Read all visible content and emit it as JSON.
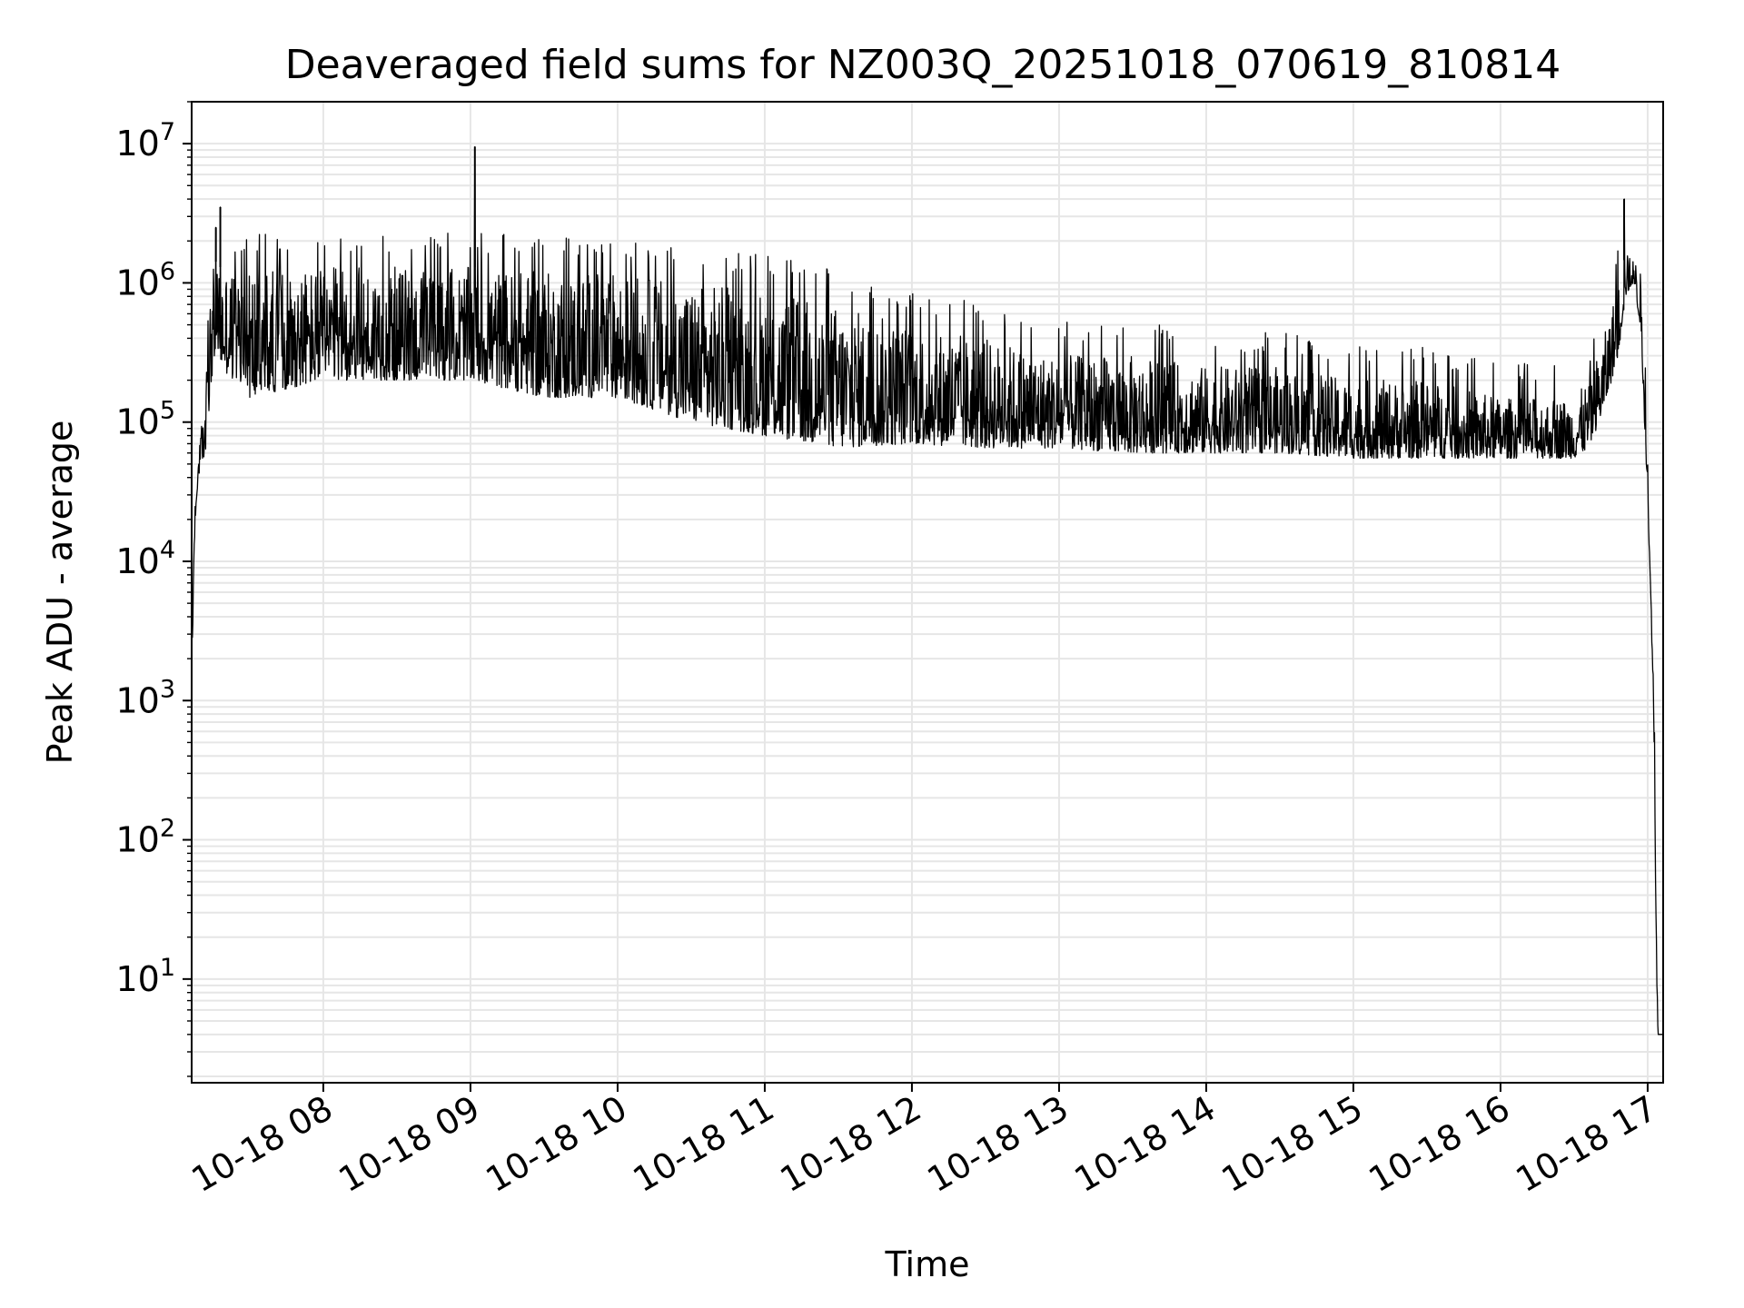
{
  "chart_data": {
    "type": "line",
    "title": "Deaveraged field sums for NZ003Q_20251018_070619_810814",
    "xlabel": "Time",
    "ylabel": "Peak ADU - average",
    "yscale": "log",
    "grid": true,
    "line_color": "#000000",
    "grid_color": "#e6e6e6",
    "xlim_hours": [
      7.1053,
      17.1053
    ],
    "ylim": [
      1.8,
      20000000
    ],
    "x_ticks": [
      {
        "hour": 8,
        "label": "10-18 08"
      },
      {
        "hour": 9,
        "label": "10-18 09"
      },
      {
        "hour": 10,
        "label": "10-18 10"
      },
      {
        "hour": 11,
        "label": "10-18 11"
      },
      {
        "hour": 12,
        "label": "10-18 12"
      },
      {
        "hour": 13,
        "label": "10-18 13"
      },
      {
        "hour": 14,
        "label": "10-18 14"
      },
      {
        "hour": 15,
        "label": "10-18 15"
      },
      {
        "hour": 16,
        "label": "10-18 16"
      },
      {
        "hour": 17,
        "label": "10-18 17"
      }
    ],
    "y_ticks": [
      {
        "value": 10,
        "base": "10",
        "exp": "1"
      },
      {
        "value": 100,
        "base": "10",
        "exp": "2"
      },
      {
        "value": 1000,
        "base": "10",
        "exp": "3"
      },
      {
        "value": 10000,
        "base": "10",
        "exp": "4"
      },
      {
        "value": 100000,
        "base": "10",
        "exp": "5"
      },
      {
        "value": 1000000,
        "base": "10",
        "exp": "6"
      },
      {
        "value": 10000000,
        "base": "10",
        "exp": "7"
      }
    ],
    "envelope_hours": [
      7.11,
      7.12,
      7.14,
      7.16,
      7.2,
      7.24,
      7.28,
      7.3,
      7.5,
      8.0,
      8.5,
      9.0,
      9.5,
      10.0,
      10.5,
      11.0,
      11.5,
      12.0,
      12.5,
      13.0,
      13.5,
      14.0,
      14.5,
      15.0,
      15.5,
      16.0,
      16.5,
      16.6,
      16.7,
      16.8,
      16.85,
      16.9,
      16.95,
      17.0,
      17.02,
      17.04,
      17.06,
      17.07,
      17.1
    ],
    "envelope_low": [
      1500,
      10000,
      30000,
      45000,
      60000,
      200000,
      350000,
      250000,
      150000,
      200000,
      200000,
      200000,
      150000,
      150000,
      100000,
      80000,
      65000,
      70000,
      65000,
      65000,
      60000,
      60000,
      60000,
      55000,
      55000,
      55000,
      55000,
      65000,
      120000,
      300000,
      800000,
      1000000,
      500000,
      30000,
      5000,
      1000,
      10,
      4,
      4
    ],
    "envelope_high": [
      3000,
      20000,
      50000,
      70000,
      200000,
      1200000,
      1500000,
      1300000,
      1300000,
      1300000,
      1300000,
      1300000,
      1200000,
      1200000,
      1000000,
      900000,
      700000,
      500000,
      400000,
      300000,
      300000,
      250000,
      250000,
      200000,
      200000,
      150000,
      150000,
      200000,
      400000,
      1000000,
      1600000,
      1600000,
      1200000,
      80000,
      7000,
      2000,
      20,
      4,
      4
    ],
    "spikes": [
      {
        "hour": 7.27,
        "value": 2500000
      },
      {
        "hour": 7.3,
        "value": 3500000
      },
      {
        "hour": 9.03,
        "value": 9500000
      },
      {
        "hour": 16.84,
        "value": 4000000
      }
    ]
  }
}
